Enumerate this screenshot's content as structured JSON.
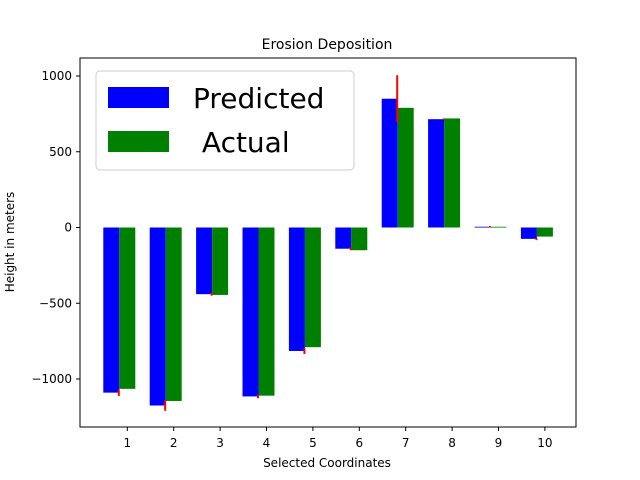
{
  "chart_data": {
    "type": "bar",
    "title": "Erosion Deposition",
    "xlabel": "Selected Coordinates",
    "ylabel": "Height in meters",
    "categories": [
      "1",
      "2",
      "3",
      "4",
      "5",
      "6",
      "7",
      "8",
      "9",
      "10"
    ],
    "ylim": [
      -1320,
      1100
    ],
    "yticks": [
      1000,
      500,
      0,
      -500,
      -1000
    ],
    "ytick_labels": [
      "1000",
      "500",
      "0",
      "−500",
      "−1000"
    ],
    "series": [
      {
        "name": "Predicted",
        "color": "#0000ff",
        "values": [
          -1090,
          -1175,
          -440,
          -1115,
          -815,
          -140,
          850,
          715,
          5,
          -75
        ],
        "error": [
          22,
          35,
          10,
          12,
          20,
          10,
          155,
          5,
          5,
          8
        ],
        "error_color": "#ff0000"
      },
      {
        "name": " Actual",
        "color": "#008000",
        "values": [
          -1065,
          -1145,
          -445,
          -1110,
          -790,
          -150,
          790,
          720,
          5,
          -60
        ]
      }
    ],
    "legend_position": "upper left",
    "grid": false
  }
}
